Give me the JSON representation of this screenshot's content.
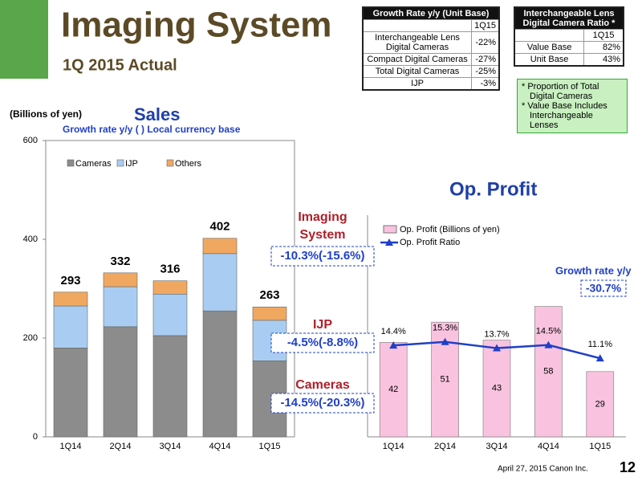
{
  "header": {
    "title": "Imaging System",
    "subtitle": "1Q 2015 Actual"
  },
  "growth_table": {
    "title": "Growth Rate y/y  (Unit Base)",
    "column": "1Q15",
    "rows": [
      [
        "Interchangeable Lens Digital Cameras",
        "-22%"
      ],
      [
        "Compact Digital Cameras",
        "-27%"
      ],
      [
        "Total Digital Cameras",
        "-25%"
      ],
      [
        "IJP",
        "-3%"
      ]
    ]
  },
  "ratio_table": {
    "title": "Interchangeable Lens Digital Camera Ratio *",
    "column": "1Q15",
    "rows": [
      [
        "Value Base",
        "82%"
      ],
      [
        "Unit Base",
        "43%"
      ]
    ]
  },
  "ratio_notes": [
    "* Proportion of Total Digital Cameras",
    "* Value Base Includes Interchangeable Lenses"
  ],
  "chart_data": [
    {
      "type": "stacked_bar",
      "title": "Sales",
      "subtitle": "Growth rate y/y  ( ) Local currency base",
      "y_label": "(Billions of yen)",
      "categories": [
        "1Q14",
        "2Q14",
        "3Q14",
        "4Q14",
        "1Q15"
      ],
      "series": [
        {
          "name": "Cameras",
          "color": "#8c8c8c",
          "values": [
            180,
            223,
            205,
            255,
            154
          ]
        },
        {
          "name": "IJP",
          "color": "#a9cdf2",
          "values": [
            85,
            81,
            84,
            116,
            82
          ]
        },
        {
          "name": "Others",
          "color": "#f0a860",
          "values": [
            28,
            28,
            27,
            31,
            27
          ]
        }
      ],
      "totals": [
        293,
        332,
        316,
        402,
        263
      ],
      "ylim": [
        0,
        600
      ],
      "yticks": [
        0,
        200,
        400,
        600
      ]
    },
    {
      "type": "bar_line",
      "title": "Op. Profit",
      "categories": [
        "1Q14",
        "2Q14",
        "3Q14",
        "4Q14",
        "1Q15"
      ],
      "series": [
        {
          "name": "Op. Profit (Billions of yen)",
          "color": "#f9c3df",
          "values": [
            42,
            51,
            43,
            58,
            29
          ]
        },
        {
          "name": "Op. Profit Ratio",
          "color": "#1f3fc8",
          "axis": "y2",
          "values": [
            14.4,
            15.3,
            13.7,
            14.5,
            11.1
          ],
          "value_labels": [
            "14.4%",
            "15.3%",
            "13.7%",
            "14.5%",
            "11.1%"
          ]
        }
      ],
      "annotations": [
        {
          "label": "Imaging System",
          "growth": "-10.3%(-15.6%)"
        },
        {
          "label": "IJP",
          "growth": "-4.5%(-8.8%)"
        },
        {
          "label": "Cameras",
          "growth": "-14.5%(-20.3%)"
        }
      ],
      "growth_label": "Growth rate y/y",
      "growth": "-30.7%"
    }
  ],
  "footer": {
    "date": "April 27, 2015 Canon Inc.",
    "page": "12"
  }
}
